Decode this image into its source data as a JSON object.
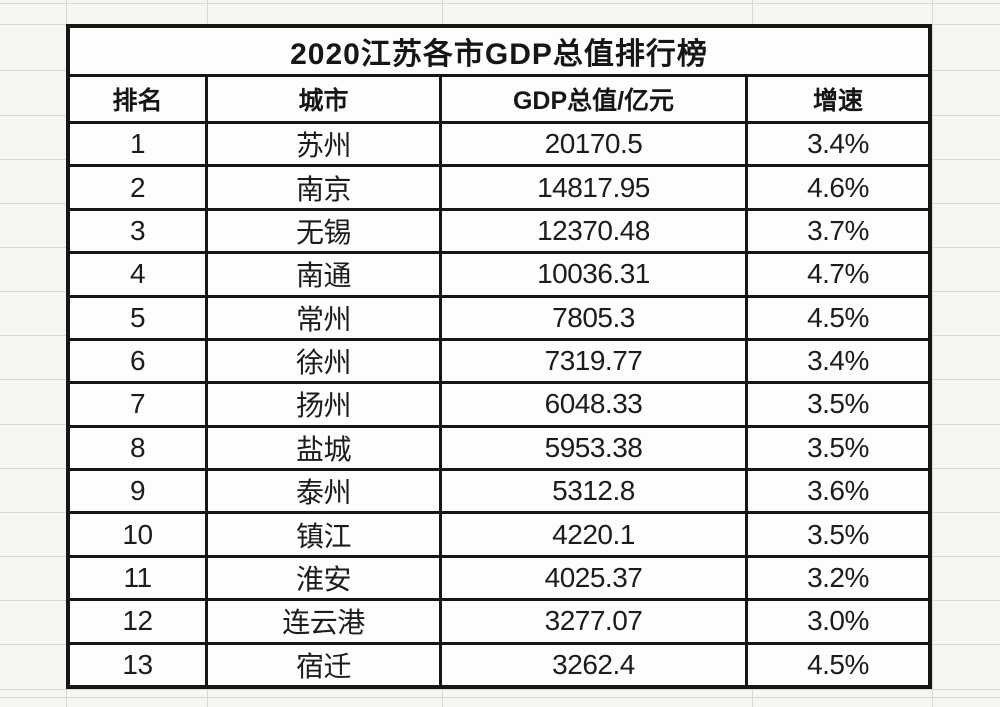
{
  "table": {
    "title": "2020江苏各市GDP总值排行榜",
    "columns": [
      "排名",
      "城市",
      "GDP总值/亿元",
      "增速"
    ],
    "rows": [
      {
        "rank": "1",
        "city": "苏州",
        "gdp": "20170.5",
        "growth": "3.4%"
      },
      {
        "rank": "2",
        "city": "南京",
        "gdp": "14817.95",
        "growth": "4.6%"
      },
      {
        "rank": "3",
        "city": "无锡",
        "gdp": "12370.48",
        "growth": "3.7%"
      },
      {
        "rank": "4",
        "city": "南通",
        "gdp": "10036.31",
        "growth": "4.7%"
      },
      {
        "rank": "5",
        "city": "常州",
        "gdp": "7805.3",
        "growth": "4.5%"
      },
      {
        "rank": "6",
        "city": "徐州",
        "gdp": "7319.77",
        "growth": "3.4%"
      },
      {
        "rank": "7",
        "city": "扬州",
        "gdp": "6048.33",
        "growth": "3.5%"
      },
      {
        "rank": "8",
        "city": "盐城",
        "gdp": "5953.38",
        "growth": "3.5%"
      },
      {
        "rank": "9",
        "city": "泰州",
        "gdp": "5312.8",
        "growth": "3.6%"
      },
      {
        "rank": "10",
        "city": "镇江",
        "gdp": "4220.1",
        "growth": "3.5%"
      },
      {
        "rank": "11",
        "city": "淮安",
        "gdp": "4025.37",
        "growth": "3.2%"
      },
      {
        "rank": "12",
        "city": "连云港",
        "gdp": "3277.07",
        "growth": "3.0%"
      },
      {
        "rank": "13",
        "city": "宿迁",
        "gdp": "3262.4",
        "growth": "4.5%"
      }
    ]
  },
  "colors": {
    "table_border": "#161616",
    "cell_background": "#fdfdfc",
    "sheet_background": "#f7f6f3",
    "sheet_gridline": "#d9d8d4",
    "text": "#1c1c1c"
  },
  "chart_data": {
    "type": "table",
    "title": "2020江苏各市GDP总值排行榜",
    "columns": [
      "排名",
      "城市",
      "GDP总值/亿元",
      "增速"
    ],
    "categories": [
      "苏州",
      "南京",
      "无锡",
      "南通",
      "常州",
      "徐州",
      "扬州",
      "盐城",
      "泰州",
      "镇江",
      "淮安",
      "连云港",
      "宿迁"
    ],
    "series": [
      {
        "name": "GDP总值/亿元",
        "values": [
          20170.5,
          14817.95,
          12370.48,
          10036.31,
          7805.3,
          7319.77,
          6048.33,
          5953.38,
          5312.8,
          4220.1,
          4025.37,
          3277.07,
          3262.4
        ]
      },
      {
        "name": "增速(%)",
        "values": [
          3.4,
          4.6,
          3.7,
          4.7,
          4.5,
          3.4,
          3.5,
          3.5,
          3.6,
          3.5,
          3.2,
          3.0,
          4.5
        ]
      }
    ]
  }
}
